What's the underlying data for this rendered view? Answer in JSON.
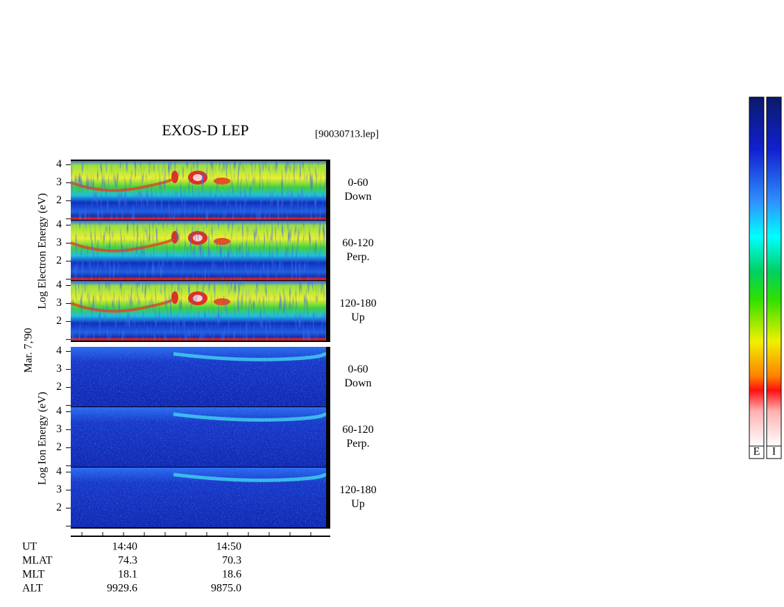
{
  "chart_data": {
    "type": "spectrogram",
    "title": "EXOS-D LEP",
    "file_label": "[90030713.lep]",
    "date_label": "Mar. 7,'90",
    "electron_axis_label": "Log  Electron  Energy  (eV)",
    "ion_axis_label": "Log  Ion  Energy  (eV)",
    "ylim": [
      0.9,
      4.25
    ],
    "yticks": [
      1,
      {
        "value": 2,
        "label": "2"
      },
      {
        "value": 3,
        "label": "3"
      },
      {
        "value": 4,
        "label": "4"
      }
    ],
    "xlim": [
      34.93,
      59.87
    ],
    "xticks": [
      36,
      38,
      {
        "value": 40,
        "label": "14:40"
      },
      42,
      44,
      46,
      48,
      {
        "value": 50,
        "label": "14:50"
      },
      52,
      54,
      56,
      58
    ],
    "panels": [
      {
        "species": "electron",
        "label": [
          "0-60",
          "Down"
        ]
      },
      {
        "species": "electron",
        "label": [
          "60-120",
          "Perp."
        ]
      },
      {
        "species": "electron",
        "label": [
          "120-180",
          "Up"
        ]
      },
      {
        "species": "ion",
        "label": [
          "0-60",
          "Down"
        ]
      },
      {
        "species": "ion",
        "label": [
          "60-120",
          "Perp."
        ]
      },
      {
        "species": "ion",
        "label": [
          "120-180",
          "Up"
        ]
      }
    ],
    "orbit_rows": [
      {
        "name": "UT"
      },
      {
        "name": "MLAT",
        "values": [
          "74.3",
          "70.3"
        ]
      },
      {
        "name": "MLT",
        "values": [
          "18.1",
          "18.6"
        ]
      },
      {
        "name": "ALT",
        "values": [
          "9929.6",
          "9875.0"
        ]
      }
    ],
    "colorbars": [
      "E",
      "I"
    ]
  }
}
